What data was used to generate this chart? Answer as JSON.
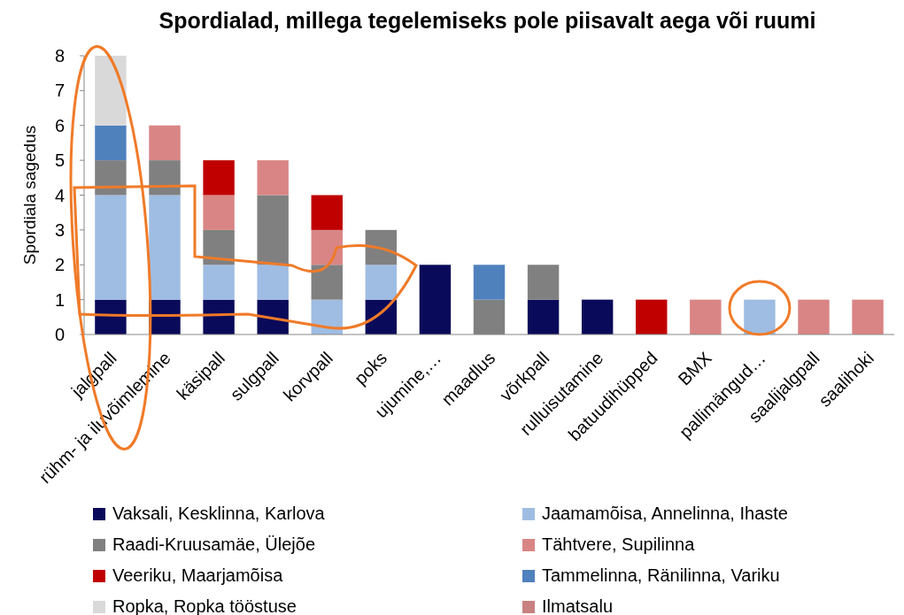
{
  "chart_data": {
    "type": "bar",
    "stacked": true,
    "title": "Spordialad, millega tegelemiseks pole piisavalt aega või ruumi",
    "ylabel": "Spordiala sagedus",
    "categories": [
      "jalgpall",
      "rühm- ja iluvõimlemine",
      "käsipall",
      "sulgpall",
      "korvpall",
      "poks",
      "ujumine,…",
      "maadlus",
      "võrkpall",
      "rulluisutamine",
      "batuudihüpped",
      "BMX",
      "pallimängud…",
      "saalijalgpall",
      "saalihoki"
    ],
    "series": [
      {
        "name": "Vaksali, Kesklinna, Karlova",
        "color": "#0a0a5a",
        "values": [
          1,
          1,
          1,
          1,
          0,
          1,
          2,
          0,
          1,
          1,
          0,
          0,
          0,
          0,
          0
        ]
      },
      {
        "name": "Jaamamõisa, Annelinna, Ihaste",
        "color": "#9fbde3",
        "values": [
          3,
          3,
          1,
          1,
          1,
          1,
          0,
          0,
          0,
          0,
          0,
          0,
          1,
          0,
          0
        ]
      },
      {
        "name": "Raadi-Kruusamäe, Ülejõe",
        "color": "#808080",
        "values": [
          1,
          1,
          1,
          2,
          1,
          1,
          0,
          1,
          1,
          0,
          0,
          0,
          0,
          0,
          0
        ]
      },
      {
        "name": "Tähtvere, Supilinna",
        "color": "#d98585",
        "values": [
          0,
          1,
          1,
          1,
          1,
          0,
          0,
          0,
          0,
          0,
          0,
          1,
          0,
          1,
          1
        ]
      },
      {
        "name": "Veeriku, Maarjamõisa",
        "color": "#c00000",
        "values": [
          0,
          0,
          1,
          0,
          1,
          0,
          0,
          0,
          0,
          0,
          1,
          0,
          0,
          0,
          0
        ]
      },
      {
        "name": "Tammelinna, Ränilinna, Variku",
        "color": "#4f81bd",
        "values": [
          1,
          0,
          0,
          0,
          0,
          0,
          0,
          1,
          0,
          0,
          0,
          0,
          0,
          0,
          0
        ]
      },
      {
        "name": "Ropka, Ropka tööstuse",
        "color": "#d9d9d9",
        "values": [
          2,
          0,
          0,
          0,
          0,
          0,
          0,
          0,
          0,
          0,
          0,
          0,
          0,
          0,
          0
        ]
      },
      {
        "name": "Ilmatsalu",
        "color": "#c98080",
        "values": [
          0,
          0,
          0,
          0,
          0,
          0,
          0,
          0,
          0,
          0,
          0,
          0,
          0,
          0,
          0
        ]
      }
    ],
    "ylim": [
      0,
      8
    ],
    "yticks": [
      0,
      1,
      2,
      3,
      4,
      5,
      6,
      7,
      8
    ],
    "grid": false,
    "legend": "bottom"
  }
}
